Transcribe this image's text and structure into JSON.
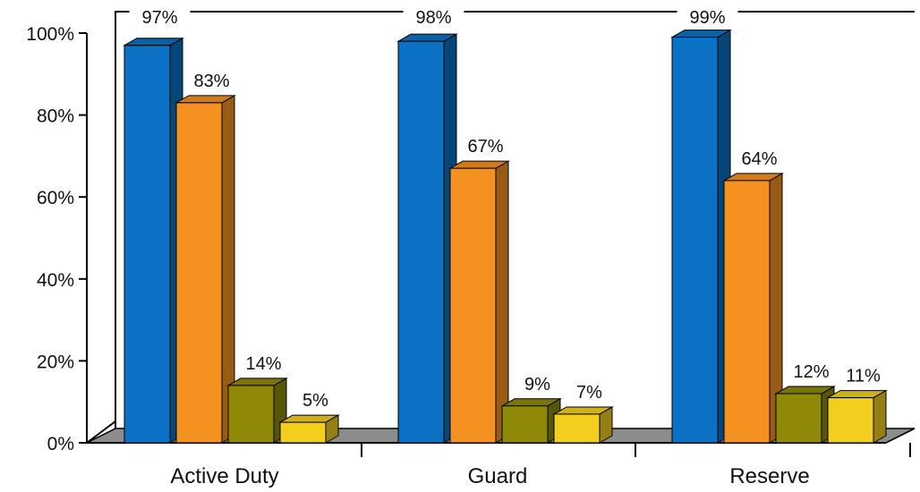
{
  "chart_data": {
    "type": "bar",
    "categories": [
      "Active Duty",
      "Guard",
      "Reserve"
    ],
    "series": [
      {
        "color": "#0A72C4",
        "values": [
          97,
          98,
          99
        ]
      },
      {
        "color": "#F39221",
        "values": [
          83,
          67,
          64
        ]
      },
      {
        "color": "#8E8A07",
        "values": [
          14,
          9,
          12
        ]
      },
      {
        "color": "#F2CF1E",
        "values": [
          5,
          7,
          11
        ]
      }
    ],
    "data_labels": [
      [
        "97%",
        "98%",
        "99%"
      ],
      [
        "83%",
        "67%",
        "64%"
      ],
      [
        "14%",
        "9%",
        "12%"
      ],
      [
        "5%",
        "7%",
        "11%"
      ]
    ],
    "y_ticks": [
      "0%",
      "20%",
      "40%",
      "60%",
      "80%",
      "100%"
    ],
    "ylim": [
      0,
      100
    ],
    "grid": false,
    "legend": "none",
    "floor_color": "#8C8C8C"
  }
}
